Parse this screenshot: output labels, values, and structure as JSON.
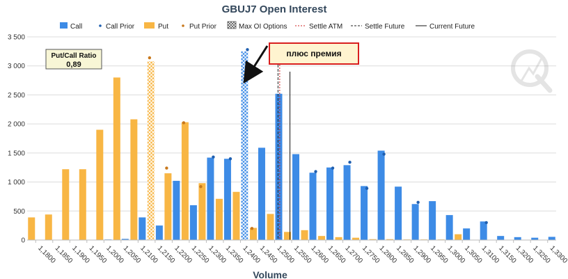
{
  "chart_data": {
    "type": "bar",
    "title": "GBUJ7 Open Interest",
    "xlabel": "Volume",
    "ylabel": "",
    "ylim": [
      0,
      3500
    ],
    "yticks": [
      "0",
      "500",
      "1 000",
      "1 500",
      "2 000",
      "2 500",
      "3 000",
      "3 500"
    ],
    "grid": true,
    "legend_position": "top",
    "legend": [
      "Call",
      "Call Prior",
      "Put",
      "Put Prior",
      "Max OI Options",
      "Settle ATM",
      "Settle Future",
      "Current Future"
    ],
    "categories": [
      "1,1800",
      "1,1850",
      "1,1900",
      "1,1950",
      "1,2000",
      "1,2050",
      "1,2100",
      "1,2150",
      "1,2200",
      "1,2250",
      "1,2300",
      "1,2350",
      "1,2400",
      "1,2450",
      "1,2500",
      "1,2550",
      "1,2600",
      "1,2650",
      "1,2700",
      "1,2750",
      "1,2800",
      "1,2850",
      "1,2900",
      "1,2950",
      "1,3000",
      "1,3050",
      "1,3100",
      "1,3150",
      "1,3200",
      "1,3250",
      "1,3300"
    ],
    "series": [
      {
        "name": "Put",
        "color": "#f8b644",
        "values": [
          390,
          440,
          1220,
          1220,
          1900,
          2800,
          2080,
          3080,
          1150,
          2030,
          980,
          710,
          830,
          210,
          450,
          140,
          170,
          70,
          50,
          40,
          15,
          15,
          10,
          10,
          10,
          100,
          0,
          0,
          0,
          0,
          0
        ],
        "max_oi_index": 7
      },
      {
        "name": "Call",
        "color": "#3d8be6",
        "values": [
          0,
          0,
          0,
          0,
          10,
          20,
          390,
          250,
          1020,
          600,
          1420,
          1400,
          3250,
          1590,
          2520,
          1480,
          1160,
          1250,
          1290,
          930,
          1540,
          920,
          620,
          670,
          430,
          200,
          320,
          70,
          50,
          40,
          55
        ],
        "max_oi_index": 12
      },
      {
        "name": "Put Prior",
        "color": "#c8781c",
        "points": [
          [
            7,
            3140
          ],
          [
            8,
            1240
          ],
          [
            9,
            2020
          ],
          [
            10,
            920
          ],
          [
            13,
            200
          ]
        ]
      },
      {
        "name": "Call Prior",
        "color": "#1f5fb0",
        "points": [
          [
            10,
            1430
          ],
          [
            11,
            1400
          ],
          [
            12,
            3280
          ],
          [
            16,
            1180
          ],
          [
            17,
            1240
          ],
          [
            18,
            1340
          ],
          [
            19,
            890
          ],
          [
            20,
            1480
          ],
          [
            22,
            650
          ],
          [
            26,
            300
          ]
        ]
      }
    ],
    "reference_lines": [
      {
        "name": "Settle ATM",
        "x": "1,2515",
        "color": "#cc2222",
        "style": "dotted"
      },
      {
        "name": "Settle Future",
        "x": "1,2510",
        "color": "#222222",
        "style": "dashed"
      },
      {
        "name": "Current Future",
        "x": "1,2545",
        "color": "#111111",
        "style": "solid"
      }
    ],
    "annotations": {
      "ratio_title": "Put/Call Ratio",
      "ratio_value": "0,89",
      "callout": "плюс премия"
    }
  }
}
